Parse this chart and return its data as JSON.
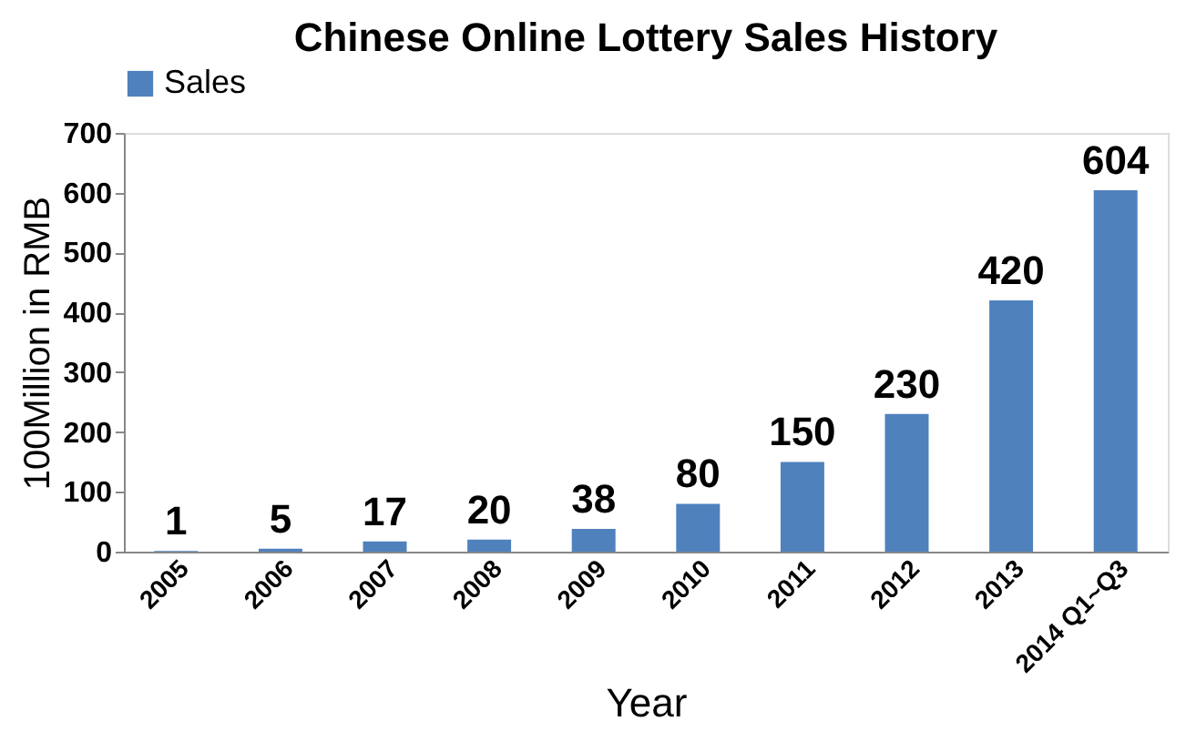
{
  "chart_data": {
    "type": "bar",
    "title": "Chinese Online Lottery Sales History",
    "categories": [
      "2005",
      "2006",
      "2007",
      "2008",
      "2009",
      "2010",
      "2011",
      "2012",
      "2013",
      "2014 Q1~Q3"
    ],
    "series": [
      {
        "name": "Sales",
        "color": "#4f81bd",
        "values": [
          1,
          5,
          17,
          20,
          38,
          80,
          150,
          230,
          420,
          604
        ]
      }
    ],
    "xlabel": "Year",
    "ylabel": "100Million in RMB",
    "ylim": [
      0,
      700
    ],
    "yticks": [
      0,
      100,
      200,
      300,
      400,
      500,
      600,
      700
    ],
    "data_labels": true,
    "legend": "top",
    "grid": false
  }
}
